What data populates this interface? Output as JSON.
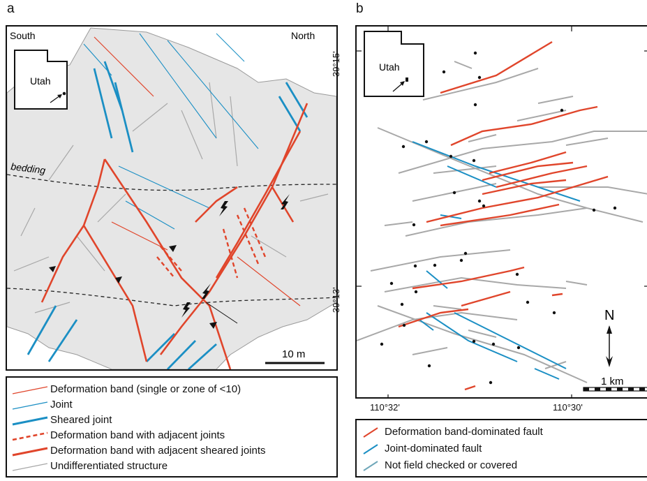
{
  "figure": {
    "panel_a": {
      "letter": "a",
      "direction_left": "South",
      "direction_right": "North",
      "inset_label": "Utah",
      "bedding_label": "bedding",
      "scale_label": "10 m"
    },
    "panel_b": {
      "letter": "b",
      "inset_label": "Utah",
      "lat_top": "39°15'",
      "lat_bottom": "39°13'",
      "lon_left": "110°32'",
      "lon_right": "110°30'",
      "north_label": "N",
      "scale_label": "1 km"
    },
    "legend_a": [
      {
        "label": "Deformation band (single or zone of <10)",
        "style": "thin-red"
      },
      {
        "label": "Joint",
        "style": "thin-blue"
      },
      {
        "label": "Sheared joint",
        "style": "thick-blue"
      },
      {
        "label": "Deformation band with adjacent joints",
        "style": "dashed-red"
      },
      {
        "label": "Deformation band with adjacent sheared joints",
        "style": "thick-red"
      },
      {
        "label": "Undifferentiated structure",
        "style": "thin-gray"
      }
    ],
    "legend_b": [
      {
        "label": "Deformation band-dominated fault",
        "style": "red"
      },
      {
        "label": "Joint-dominated fault",
        "style": "blue"
      },
      {
        "label": "Not field checked or covered",
        "style": "gray-blue"
      }
    ],
    "colors": {
      "red": "#e0452b",
      "blue": "#1b8fc4",
      "gray": "#a8a8a8",
      "outcrop": "#e6e6e6"
    }
  }
}
